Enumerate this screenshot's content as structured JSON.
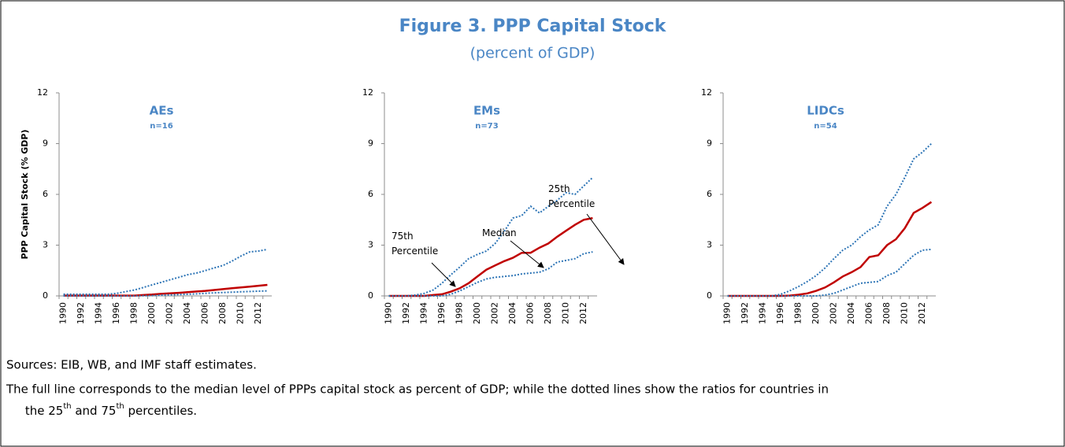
{
  "title": "Figure 3. PPP Capital Stock",
  "subtitle": "(percent of GDP)",
  "chart_data": [
    {
      "type": "line",
      "title": "AEs",
      "subtitle": "n=16",
      "ylabel": "PPP Capital Stock (% GDP)",
      "categories": [
        "1990",
        null,
        "1992",
        null,
        "1994",
        null,
        "1996",
        null,
        "1998",
        null,
        "2000",
        null,
        "2002",
        null,
        "2004",
        null,
        "2006",
        null,
        "2008",
        null,
        "2010",
        null,
        "2012",
        null
      ],
      "ylim": [
        0,
        12
      ],
      "yticks": [
        0,
        3,
        6,
        9,
        12
      ],
      "series": [
        {
          "color": "#c00000",
          "style": "solid",
          "values": [
            0.02,
            0.02,
            0.02,
            0.02,
            0.02,
            0.02,
            0.02,
            0.02,
            0.02,
            0.05,
            0.08,
            0.12,
            0.15,
            0.18,
            0.22,
            0.26,
            0.3,
            0.35,
            0.4,
            0.45,
            0.5,
            0.55,
            0.6,
            0.65
          ]
        },
        {
          "color": "#2e75b6",
          "style": "dotted",
          "values": [
            0.1,
            0.1,
            0.1,
            0.1,
            0.1,
            0.1,
            0.15,
            0.25,
            0.35,
            0.5,
            0.65,
            0.8,
            0.95,
            1.1,
            1.25,
            1.35,
            1.5,
            1.65,
            1.8,
            2.05,
            2.35,
            2.6,
            2.65,
            2.75
          ]
        },
        {
          "color": "#2e75b6",
          "style": "dotted",
          "values": [
            0,
            0,
            0,
            0,
            0,
            0,
            0,
            0,
            0,
            0.01,
            0.02,
            0.04,
            0.06,
            0.08,
            0.1,
            0.12,
            0.15,
            0.18,
            0.2,
            0.22,
            0.24,
            0.26,
            0.28,
            0.3
          ]
        }
      ]
    },
    {
      "type": "line",
      "title": "EMs",
      "subtitle": "n=73",
      "categories": [
        "1990",
        null,
        "1992",
        null,
        "1994",
        null,
        "1996",
        null,
        "1998",
        null,
        "2000",
        null,
        "2002",
        null,
        "2004",
        null,
        "2006",
        null,
        "2008",
        null,
        "2010",
        null,
        "2012",
        null
      ],
      "ylim": [
        0,
        12
      ],
      "yticks": [
        0,
        3,
        6,
        9,
        12
      ],
      "series": [
        {
          "color": "#c00000",
          "style": "solid",
          "values": [
            0,
            0,
            0,
            0,
            0,
            0.05,
            0.1,
            0.25,
            0.45,
            0.75,
            1.15,
            1.55,
            1.8,
            2.05,
            2.25,
            2.55,
            2.55,
            2.85,
            3.1,
            3.5,
            3.85,
            4.2,
            4.5,
            4.6
          ]
        },
        {
          "color": "#2e75b6",
          "style": "dotted",
          "values": [
            0,
            0,
            0,
            0.05,
            0.15,
            0.35,
            0.75,
            1.25,
            1.7,
            2.2,
            2.45,
            2.65,
            3.1,
            3.8,
            4.6,
            4.75,
            5.3,
            4.9,
            5.3,
            5.65,
            6.1,
            6.0,
            6.5,
            7.0
          ]
        },
        {
          "color": "#2e75b6",
          "style": "dotted",
          "values": [
            0,
            0,
            0,
            0,
            0,
            0,
            0,
            0.1,
            0.3,
            0.55,
            0.8,
            1.0,
            1.1,
            1.15,
            1.2,
            1.3,
            1.35,
            1.4,
            1.6,
            2.0,
            2.1,
            2.2,
            2.5,
            2.6
          ]
        }
      ],
      "annotations": [
        "75th Percentile",
        "Median",
        "25th Percentile"
      ]
    },
    {
      "type": "line",
      "title": "LIDCs",
      "subtitle": "n=54",
      "categories": [
        "1990",
        null,
        "1992",
        null,
        "1994",
        null,
        "1996",
        null,
        "1998",
        null,
        "2000",
        null,
        "2002",
        null,
        "2004",
        null,
        "2006",
        null,
        "2008",
        null,
        "2010",
        null,
        "2012",
        null
      ],
      "ylim": [
        0,
        12
      ],
      "yticks": [
        0,
        3,
        6,
        9,
        12
      ],
      "series": [
        {
          "color": "#c00000",
          "style": "solid",
          "values": [
            0,
            0,
            0,
            0,
            0,
            0,
            0,
            0.02,
            0.07,
            0.15,
            0.3,
            0.5,
            0.8,
            1.15,
            1.4,
            1.7,
            2.3,
            2.4,
            3.0,
            3.35,
            4.0,
            4.9,
            5.2,
            5.55
          ]
        },
        {
          "color": "#2e75b6",
          "style": "dotted",
          "values": [
            0,
            0,
            0,
            0,
            0,
            0,
            0.1,
            0.3,
            0.55,
            0.85,
            1.2,
            1.65,
            2.2,
            2.7,
            3.0,
            3.5,
            3.9,
            4.2,
            5.3,
            6.0,
            7.0,
            8.1,
            8.5,
            9.0
          ]
        },
        {
          "color": "#2e75b6",
          "style": "dotted",
          "values": [
            0,
            0,
            0,
            0,
            0,
            0,
            0,
            0,
            0,
            0,
            0,
            0.05,
            0.15,
            0.35,
            0.55,
            0.75,
            0.8,
            0.85,
            1.2,
            1.4,
            1.9,
            2.4,
            2.7,
            2.75
          ]
        }
      ]
    }
  ],
  "sources": "Sources: EIB, WB, and IMF staff estimates.",
  "note": [
    "The full line corresponds to the median level of PPPs capital stock as percent of GDP; while the dotted lines show the ratios for countries in",
    "the 25",
    "th",
    " and 75",
    "th",
    " percentiles."
  ]
}
